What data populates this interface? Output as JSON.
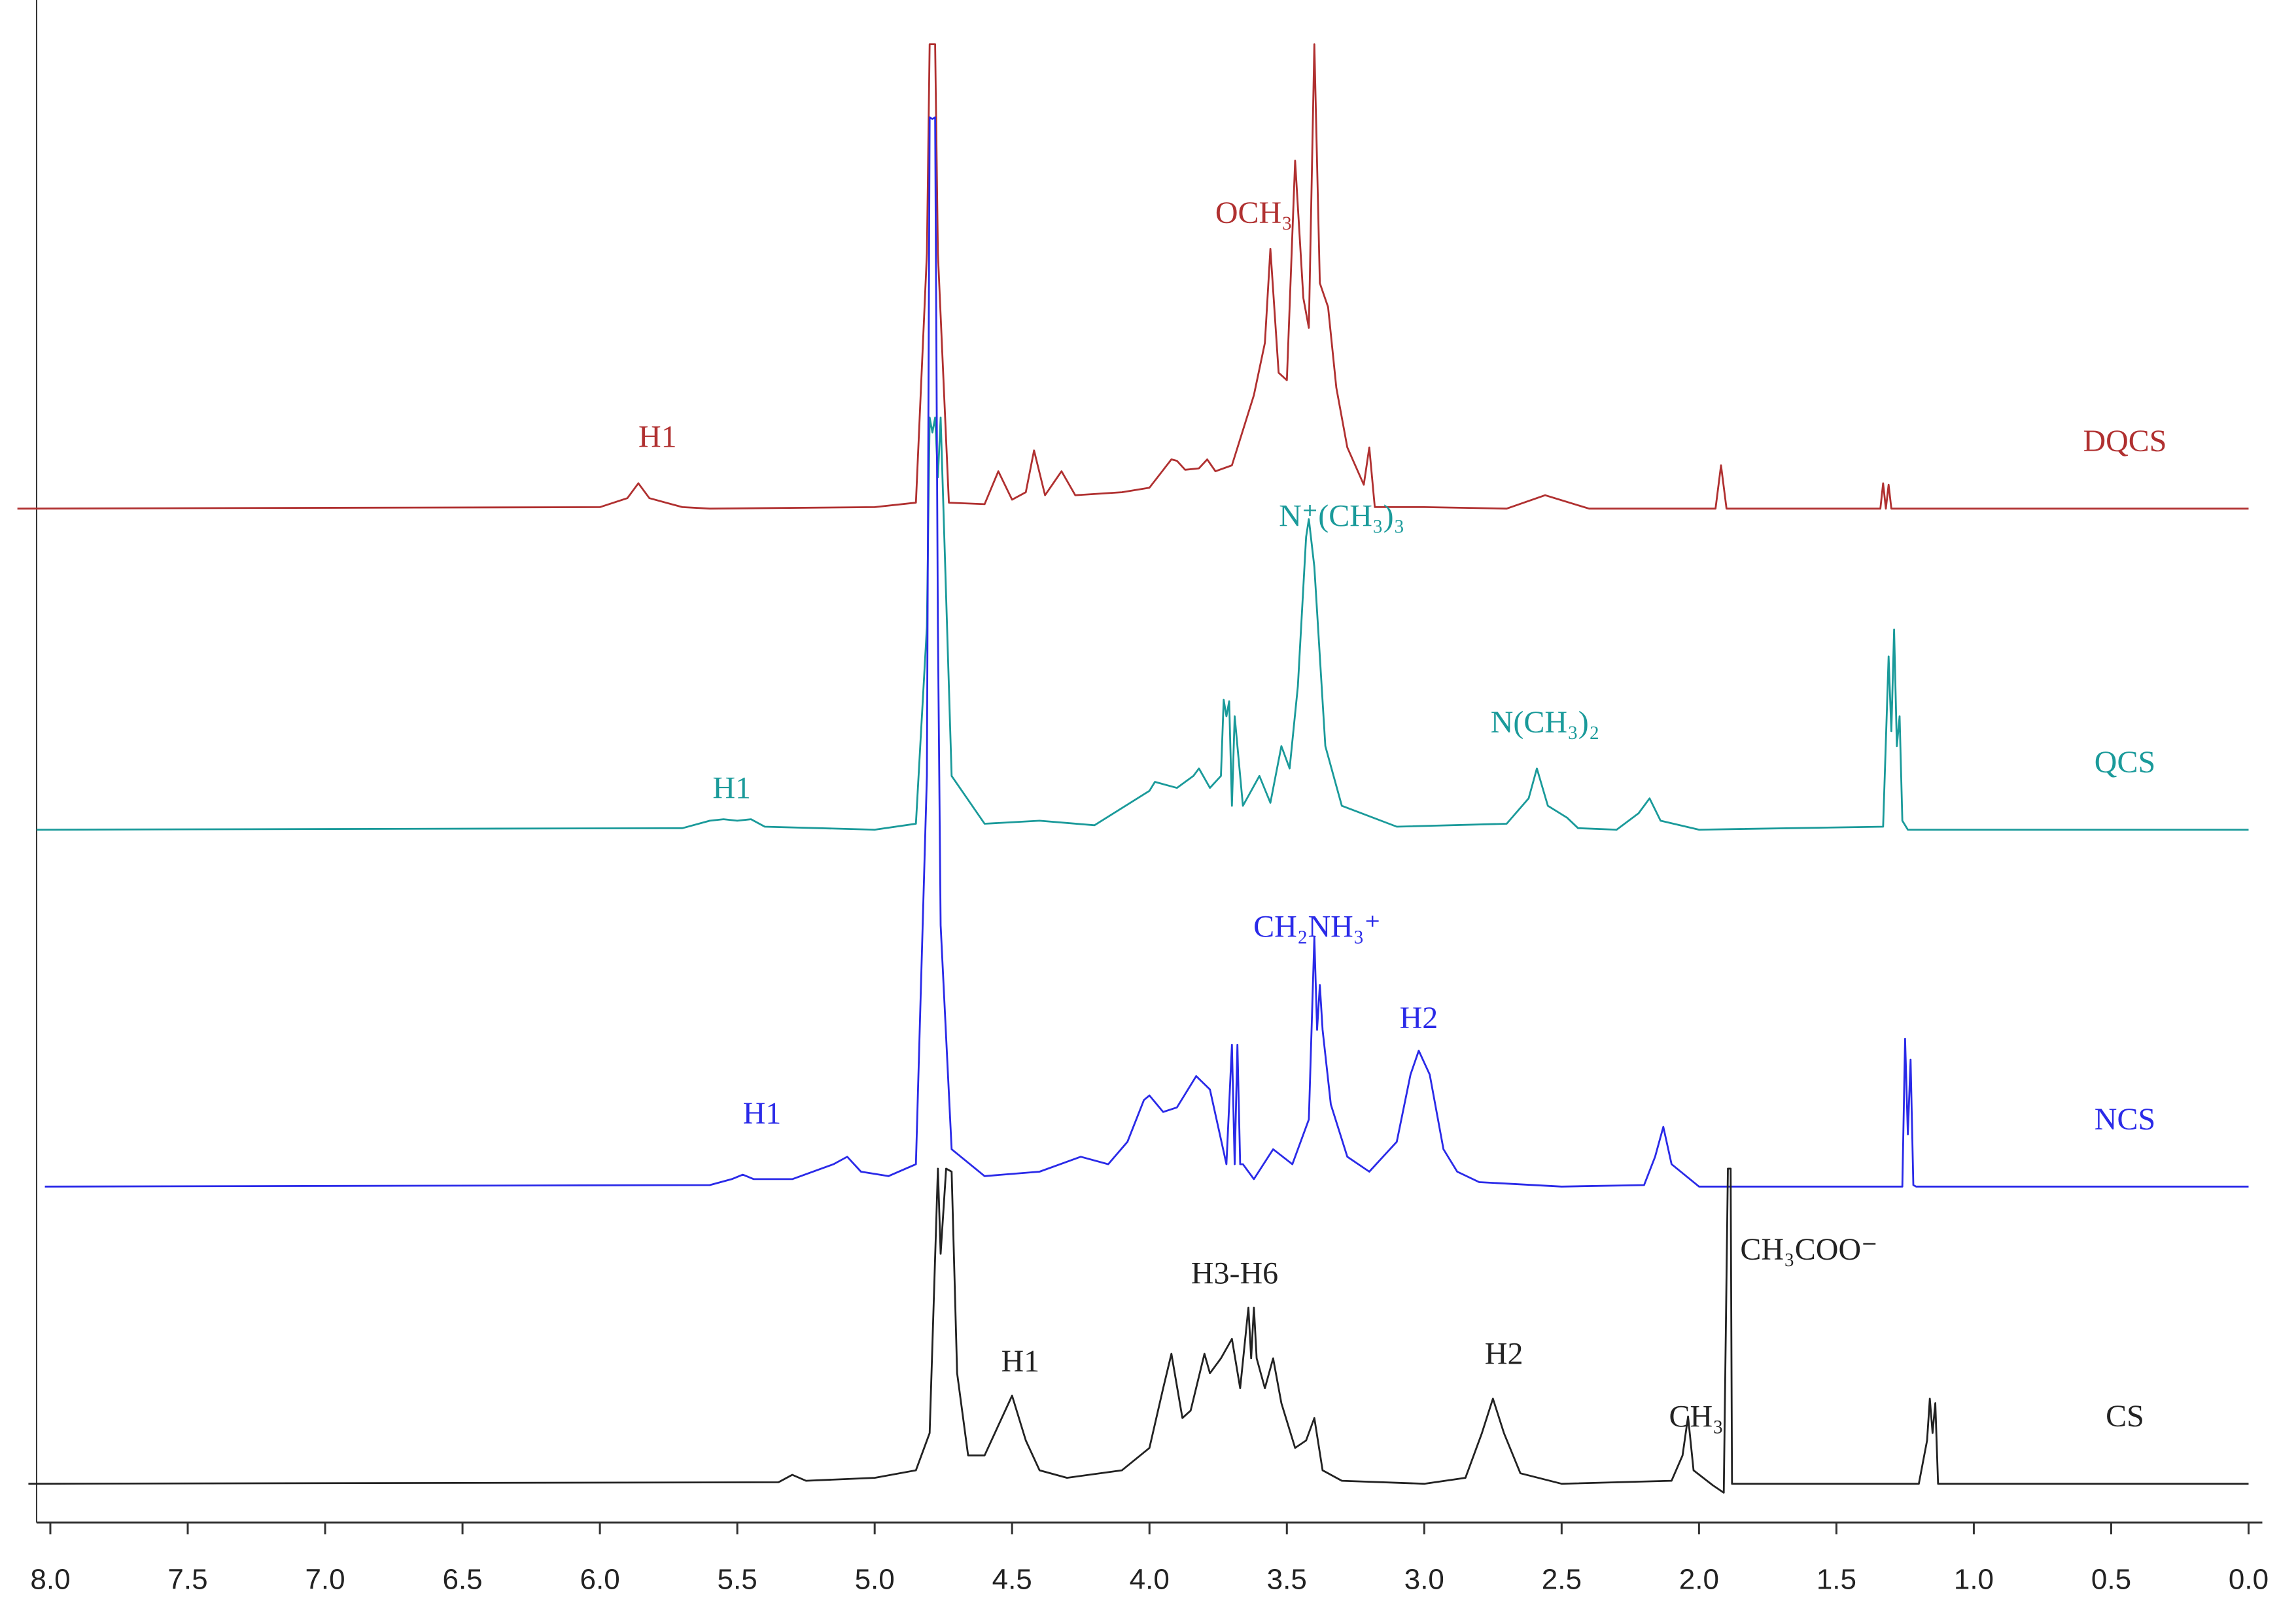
{
  "chart_data": {
    "type": "line",
    "xlim": [
      8.05,
      -0.05
    ],
    "ylim": [
      0,
      100
    ],
    "xticks": [
      {
        "value": 8,
        "label": "8.0"
      },
      7.5,
      {
        "value": 7,
        "label": "7.0"
      },
      6.5,
      {
        "value": 6,
        "label": "6.0"
      },
      5.5,
      {
        "value": 5,
        "label": "5.0"
      },
      4.5,
      {
        "value": 4,
        "label": "4.0"
      },
      3.5,
      {
        "value": 3,
        "label": "3.0"
      },
      2.5,
      {
        "value": 2,
        "label": "2.0"
      },
      1.5,
      {
        "value": 1,
        "label": "1.0"
      },
      0.5,
      {
        "value": 0,
        "label": "0.0"
      }
    ],
    "series": [
      {
        "name": "DQCS",
        "color": "#b03030",
        "x": [
          8.12,
          6.0,
          5.9,
          5.86,
          5.82,
          5.7,
          5.6,
          5.0,
          4.85,
          4.81,
          4.8,
          4.79,
          4.78,
          4.77,
          4.73,
          4.6,
          4.55,
          4.5,
          4.45,
          4.42,
          4.38,
          4.32,
          4.27,
          4.1,
          4.0,
          3.92,
          3.9,
          3.87,
          3.82,
          3.79,
          3.76,
          3.7,
          3.62,
          3.58,
          3.56,
          3.53,
          3.5,
          3.47,
          3.44,
          3.42,
          3.4,
          3.38,
          3.35,
          3.32,
          3.28,
          3.22,
          3.2,
          3.18,
          3.0,
          2.7,
          2.56,
          2.4,
          1.94,
          1.92,
          1.9,
          1.34,
          1.33,
          1.32,
          1.31,
          1.3,
          0.0
        ],
        "values": [
          67.9,
          68.0,
          68.6,
          69.6,
          68.6,
          68.0,
          67.9,
          68.0,
          68.3,
          85,
          99,
          99,
          99,
          85,
          68.3,
          68.2,
          70.4,
          68.5,
          69.0,
          71.8,
          68.8,
          70.4,
          68.8,
          69.0,
          69.3,
          71.2,
          71.1,
          70.5,
          70.6,
          71.2,
          70.4,
          70.8,
          75.5,
          79,
          85.3,
          77,
          76.5,
          91.2,
          82,
          80,
          99,
          83,
          81.4,
          76,
          72,
          69.5,
          72,
          68,
          68.0,
          67.9,
          68.8,
          67.9,
          67.9,
          70.8,
          67.9,
          67.9,
          69.6,
          67.9,
          69.5,
          67.9,
          67.9
        ],
        "annotations": [
          {
            "text": "H1",
            "x": 5.79,
            "y": 72.5
          },
          {
            "text": "OCH₃",
            "x": 3.62,
            "y": 87.5
          }
        ]
      },
      {
        "name": "QCS",
        "color": "#1a9a9a",
        "x": [
          8.05,
          5.7,
          5.6,
          5.55,
          5.5,
          5.45,
          5.4,
          5.0,
          4.85,
          4.81,
          4.8,
          4.79,
          4.78,
          4.77,
          4.76,
          4.72,
          4.6,
          4.4,
          4.2,
          4.0,
          3.98,
          3.9,
          3.84,
          3.82,
          3.78,
          3.74,
          3.73,
          3.72,
          3.71,
          3.7,
          3.69,
          3.66,
          3.6,
          3.56,
          3.52,
          3.49,
          3.46,
          3.43,
          3.42,
          3.4,
          3.36,
          3.3,
          3.1,
          2.7,
          2.62,
          2.59,
          2.55,
          2.48,
          2.44,
          2.3,
          2.22,
          2.18,
          2.14,
          2.0,
          1.33,
          1.31,
          1.3,
          1.29,
          1.28,
          1.27,
          1.26,
          1.24,
          0.0
        ],
        "values": [
          46.4,
          46.5,
          47.0,
          47.1,
          47.0,
          47.1,
          46.6,
          46.4,
          46.8,
          60,
          74,
          73,
          74,
          70,
          74,
          50,
          46.8,
          47,
          46.7,
          49,
          49.6,
          49.2,
          50,
          50.5,
          49.2,
          50,
          55.1,
          54,
          55,
          48,
          54,
          48,
          50,
          48.2,
          52,
          50.5,
          56,
          66,
          67.2,
          64,
          52,
          48,
          46.6,
          46.8,
          48.5,
          50.5,
          48,
          47.2,
          46.5,
          46.4,
          47.5,
          48.5,
          47,
          46.4,
          46.6,
          58,
          53,
          59.8,
          52,
          54,
          47,
          46.4,
          46.4
        ],
        "annotations": [
          {
            "text": "H1",
            "x": 5.52,
            "y": 49
          },
          {
            "text": "N⁺(CH₃)₃",
            "x": 3.3,
            "y": 67.2
          },
          {
            "text": "N(CH₃)₂",
            "x": 2.56,
            "y": 53.4
          }
        ]
      },
      {
        "name": "NCS",
        "color": "#2a2ae8",
        "x": [
          8.02,
          5.6,
          5.52,
          5.48,
          5.44,
          5.3,
          5.15,
          5.1,
          5.05,
          4.95,
          4.85,
          4.81,
          4.8,
          4.79,
          4.78,
          4.77,
          4.76,
          4.72,
          4.6,
          4.4,
          4.25,
          4.15,
          4.08,
          4.02,
          4.0,
          3.95,
          3.9,
          3.83,
          3.78,
          3.72,
          3.7,
          3.69,
          3.68,
          3.67,
          3.66,
          3.62,
          3.55,
          3.48,
          3.42,
          3.4,
          3.39,
          3.38,
          3.37,
          3.34,
          3.28,
          3.2,
          3.1,
          3.05,
          3.02,
          2.98,
          2.93,
          2.88,
          2.8,
          2.5,
          2.2,
          2.16,
          2.13,
          2.1,
          2.0,
          1.26,
          1.25,
          1.24,
          1.23,
          1.22,
          1.21,
          1.2,
          0.0
        ],
        "values": [
          22.5,
          22.6,
          23,
          23.3,
          23,
          23,
          24,
          24.5,
          23.5,
          23.2,
          24,
          50,
          94.1,
          94,
          94.1,
          60,
          40,
          25,
          23.2,
          23.5,
          24.5,
          24,
          25.5,
          28.3,
          28.6,
          27.5,
          27.8,
          29.9,
          29,
          24,
          32,
          24,
          32,
          24,
          24,
          23,
          25,
          24,
          27,
          39.2,
          33,
          36,
          33,
          28,
          24.5,
          23.5,
          25.5,
          30,
          31.6,
          30,
          25,
          23.5,
          22.8,
          22.5,
          22.6,
          24.5,
          26.5,
          24,
          22.5,
          22.5,
          32.4,
          26,
          31,
          22.6,
          22.5,
          22.5,
          22.5
        ],
        "annotations": [
          {
            "text": "H1",
            "x": 5.41,
            "y": 27.2
          },
          {
            "text": "CH₂NH₃⁺",
            "x": 3.39,
            "y": 39.7
          },
          {
            "text": "H2",
            "x": 3.02,
            "y": 33.6
          }
        ]
      },
      {
        "name": "CS",
        "color": "#222222",
        "x": [
          8.08,
          5.35,
          5.3,
          5.25,
          5.0,
          4.85,
          4.8,
          4.77,
          4.76,
          4.74,
          4.72,
          4.7,
          4.66,
          4.6,
          4.55,
          4.5,
          4.45,
          4.4,
          4.3,
          4.1,
          4.0,
          3.95,
          3.92,
          3.88,
          3.85,
          3.8,
          3.78,
          3.74,
          3.7,
          3.67,
          3.64,
          3.63,
          3.62,
          3.61,
          3.58,
          3.55,
          3.52,
          3.47,
          3.43,
          3.4,
          3.37,
          3.3,
          3.0,
          2.85,
          2.79,
          2.75,
          2.71,
          2.65,
          2.5,
          2.1,
          2.06,
          2.04,
          2.02,
          1.95,
          1.91,
          1.895,
          1.89,
          1.885,
          1.88,
          1.87,
          1.85,
          1.2,
          1.17,
          1.16,
          1.15,
          1.14,
          1.13,
          0.0
        ],
        "values": [
          2.6,
          2.7,
          3.2,
          2.8,
          3.0,
          3.5,
          6,
          23.7,
          18,
          23.7,
          23.5,
          10,
          4.5,
          4.5,
          6.5,
          8.5,
          5.5,
          3.5,
          3.0,
          3.5,
          5,
          9,
          11.3,
          7,
          7.5,
          11.3,
          10,
          11,
          12.3,
          9,
          14.4,
          11,
          14.4,
          11,
          9,
          11,
          8,
          5,
          5.5,
          7,
          3.5,
          2.8,
          2.6,
          3.0,
          6,
          8.3,
          6,
          3.3,
          2.6,
          2.8,
          4.5,
          7.1,
          3.5,
          2.5,
          2.0,
          23.7,
          23.7,
          23.7,
          2.6,
          2.6,
          2.6,
          2.6,
          5.5,
          8.3,
          6,
          8,
          2.6,
          2.6
        ],
        "annotations": [
          {
            "text": "H1",
            "x": 4.47,
            "y": 10.6
          },
          {
            "text": "H3-H6",
            "x": 3.69,
            "y": 16.5
          },
          {
            "text": "H2",
            "x": 2.71,
            "y": 11.1
          },
          {
            "text": "CH₃",
            "x": 2.01,
            "y": 6.9
          },
          {
            "text": "CH₃COO⁻",
            "x": 1.6,
            "y": 18.1
          }
        ]
      }
    ]
  }
}
